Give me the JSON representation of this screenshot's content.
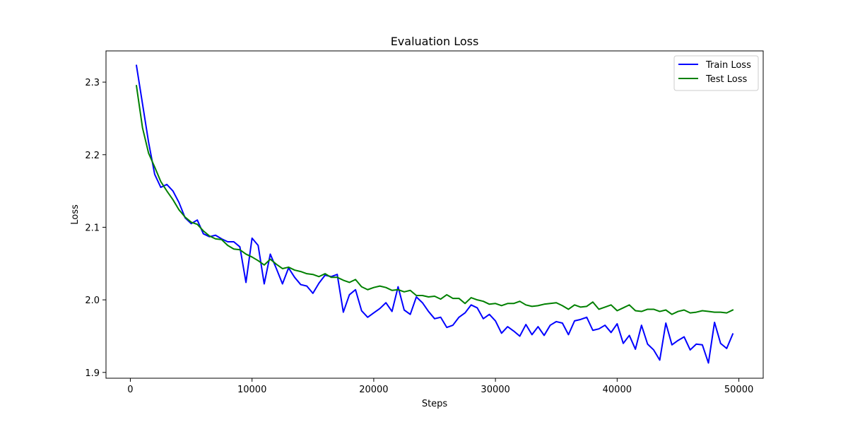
{
  "chart_data": {
    "type": "line",
    "title": "Evaluation Loss",
    "xlabel": "Steps",
    "ylabel": "Loss",
    "xlim": [
      -2000,
      52000
    ],
    "ylim": [
      1.892,
      2.343
    ],
    "xticks": [
      0,
      10000,
      20000,
      30000,
      40000,
      50000
    ],
    "yticks": [
      1.9,
      2.0,
      2.1,
      2.2,
      2.3
    ],
    "xtick_labels": [
      "0",
      "10000",
      "20000",
      "30000",
      "40000",
      "50000"
    ],
    "ytick_labels": [
      "1.9",
      "2.0",
      "2.1",
      "2.2",
      "2.3"
    ],
    "legend_position": "top-right",
    "x": [
      500,
      1000,
      1500,
      2000,
      2500,
      3000,
      3500,
      4000,
      4500,
      5000,
      5500,
      6000,
      6500,
      7000,
      7500,
      8000,
      8500,
      9000,
      9500,
      10000,
      10500,
      11000,
      11500,
      12000,
      12500,
      13000,
      13500,
      14000,
      14500,
      15000,
      15500,
      16000,
      16500,
      17000,
      17500,
      18000,
      18500,
      19000,
      19500,
      20000,
      20500,
      21000,
      21500,
      22000,
      22500,
      23000,
      23500,
      24000,
      24500,
      25000,
      25500,
      26000,
      26500,
      27000,
      27500,
      28000,
      28500,
      29000,
      29500,
      30000,
      30500,
      31000,
      31500,
      32000,
      32500,
      33000,
      33500,
      34000,
      34500,
      35000,
      35500,
      36000,
      36500,
      37000,
      37500,
      38000,
      38500,
      39000,
      39500,
      40000,
      40500,
      41000,
      41500,
      42000,
      42500,
      43000,
      43500,
      44000,
      44500,
      45000,
      45500,
      46000,
      46500,
      47000,
      47500,
      48000,
      48500,
      49000,
      49500
    ],
    "series": [
      {
        "name": "Train Loss",
        "color": "#0000ff",
        "values": [
          2.323,
          2.27,
          2.217,
          2.173,
          2.155,
          2.159,
          2.15,
          2.134,
          2.113,
          2.105,
          2.11,
          2.091,
          2.087,
          2.089,
          2.084,
          2.08,
          2.08,
          2.073,
          2.024,
          2.085,
          2.075,
          2.022,
          2.063,
          2.043,
          2.022,
          2.044,
          2.031,
          2.021,
          2.019,
          2.009,
          2.023,
          2.034,
          2.032,
          2.035,
          1.983,
          2.007,
          2.014,
          1.985,
          1.976,
          1.982,
          1.988,
          1.996,
          1.984,
          2.018,
          1.986,
          1.98,
          2.004,
          1.996,
          1.984,
          1.974,
          1.976,
          1.962,
          1.965,
          1.976,
          1.982,
          1.993,
          1.989,
          1.974,
          1.98,
          1.971,
          1.954,
          1.963,
          1.957,
          1.95,
          1.966,
          1.952,
          1.963,
          1.951,
          1.965,
          1.97,
          1.968,
          1.952,
          1.971,
          1.973,
          1.976,
          1.958,
          1.96,
          1.965,
          1.955,
          1.967,
          1.94,
          1.951,
          1.932,
          1.965,
          1.939,
          1.931,
          1.917,
          1.968,
          1.938,
          1.944,
          1.949,
          1.931,
          1.939,
          1.938,
          1.913,
          1.969,
          1.94,
          1.933,
          1.953
        ]
      },
      {
        "name": "Test Loss",
        "color": "#008000",
        "values": [
          2.295,
          2.237,
          2.202,
          2.183,
          2.163,
          2.15,
          2.138,
          2.124,
          2.114,
          2.107,
          2.104,
          2.095,
          2.088,
          2.084,
          2.083,
          2.075,
          2.07,
          2.069,
          2.063,
          2.059,
          2.054,
          2.048,
          2.056,
          2.049,
          2.043,
          2.045,
          2.041,
          2.039,
          2.036,
          2.035,
          2.032,
          2.036,
          2.031,
          2.031,
          2.027,
          2.024,
          2.028,
          2.018,
          2.014,
          2.017,
          2.019,
          2.017,
          2.013,
          2.014,
          2.011,
          2.013,
          2.006,
          2.006,
          2.004,
          2.005,
          2.001,
          2.007,
          2.002,
          2.002,
          1.995,
          2.003,
          2.0,
          1.998,
          1.994,
          1.995,
          1.992,
          1.995,
          1.995,
          1.998,
          1.993,
          1.991,
          1.992,
          1.994,
          1.995,
          1.996,
          1.992,
          1.987,
          1.993,
          1.99,
          1.991,
          1.997,
          1.987,
          1.99,
          1.993,
          1.985,
          1.989,
          1.993,
          1.985,
          1.984,
          1.987,
          1.987,
          1.984,
          1.986,
          1.98,
          1.984,
          1.986,
          1.982,
          1.983,
          1.985,
          1.984,
          1.983,
          1.983,
          1.982,
          1.986
        ]
      }
    ]
  }
}
